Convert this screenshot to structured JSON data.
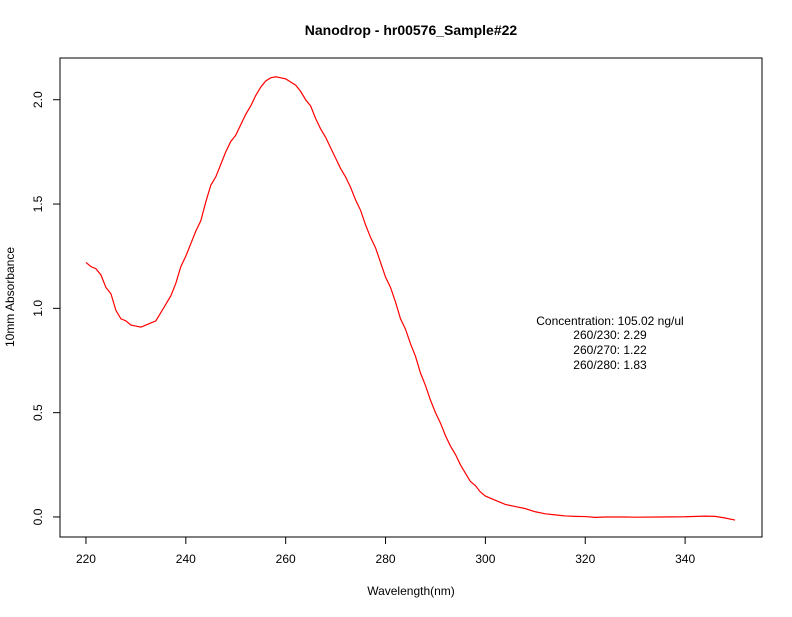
{
  "chart_data": {
    "type": "line",
    "title": "Nanodrop - hr00576_Sample#22",
    "xlabel": "Wavelength(nm)",
    "ylabel": "10mm Absorbance",
    "xlim": [
      214.8,
      355.4
    ],
    "ylim": [
      -0.096,
      2.2
    ],
    "xticks": [
      220,
      240,
      260,
      280,
      300,
      320,
      340
    ],
    "xtick_labels": [
      "220",
      "240",
      "260",
      "280",
      "300",
      "320",
      "340"
    ],
    "yticks": [
      0.0,
      0.5,
      1.0,
      1.5,
      2.0
    ],
    "ytick_labels": [
      "0.0",
      "0.5",
      "1.0",
      "1.5",
      "2.0"
    ],
    "grid": false,
    "line_color": "#ff0000",
    "series": [
      {
        "x": [
          220,
          221,
          222,
          223,
          224,
          225,
          226,
          227,
          228,
          229,
          230,
          231,
          232,
          233,
          234,
          235,
          236,
          237,
          238,
          239,
          240,
          241,
          242,
          243,
          244,
          245,
          246,
          247,
          248,
          249,
          250,
          251,
          252,
          253,
          254,
          255,
          256,
          257,
          258,
          259,
          260,
          261,
          262,
          263,
          264,
          265,
          266,
          267,
          268,
          269,
          270,
          271,
          272,
          273,
          274,
          275,
          276,
          277,
          278,
          279,
          280,
          281,
          282,
          283,
          284,
          285,
          286,
          287,
          288,
          289,
          290,
          291,
          292,
          293,
          294,
          295,
          296,
          297,
          298,
          299,
          300,
          302,
          304,
          306,
          308,
          310,
          312,
          314,
          316,
          318,
          320,
          322,
          324,
          326,
          328,
          330,
          335,
          340,
          344,
          346,
          348,
          350
        ],
        "y": [
          1.22,
          1.2,
          1.19,
          1.16,
          1.1,
          1.07,
          0.99,
          0.95,
          0.94,
          0.92,
          0.915,
          0.91,
          0.92,
          0.93,
          0.94,
          0.98,
          1.02,
          1.06,
          1.12,
          1.2,
          1.25,
          1.31,
          1.37,
          1.42,
          1.51,
          1.59,
          1.63,
          1.69,
          1.75,
          1.8,
          1.83,
          1.88,
          1.93,
          1.97,
          2.02,
          2.06,
          2.09,
          2.105,
          2.11,
          2.105,
          2.1,
          2.085,
          2.07,
          2.04,
          2.0,
          1.97,
          1.91,
          1.86,
          1.82,
          1.77,
          1.72,
          1.67,
          1.63,
          1.58,
          1.52,
          1.47,
          1.4,
          1.34,
          1.29,
          1.22,
          1.15,
          1.1,
          1.03,
          0.95,
          0.9,
          0.83,
          0.77,
          0.69,
          0.63,
          0.56,
          0.5,
          0.45,
          0.39,
          0.34,
          0.3,
          0.25,
          0.21,
          0.17,
          0.15,
          0.12,
          0.1,
          0.08,
          0.06,
          0.05,
          0.04,
          0.025,
          0.015,
          0.01,
          0.005,
          0.003,
          0.002,
          -0.002,
          0.0,
          0.0,
          0.0,
          -0.001,
          0.0,
          0.001,
          0.004,
          0.003,
          -0.005,
          -0.015
        ]
      }
    ],
    "annotations": [
      "Concentration: 105.02 ng/ul",
      "260/230: 2.29",
      "260/270: 1.22",
      "260/280: 1.83"
    ]
  }
}
